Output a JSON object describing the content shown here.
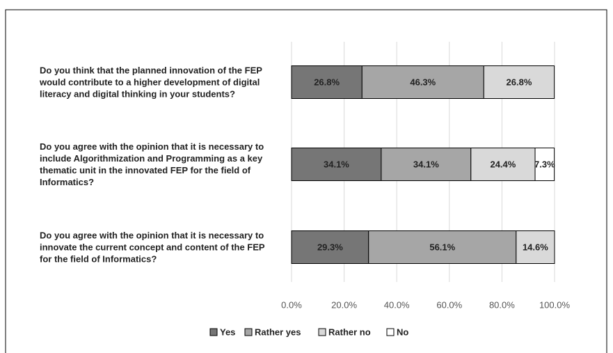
{
  "chart_data": {
    "type": "stacked_barh",
    "categories": [
      "Do you think that the planned innovation of the FEP would  contribute to a higher development of digital literacy and digital thinking in your students?",
      "Do you agree with the opinion that it is necessary to include Algorithmization and Programming as a key thematic unit in the innovated FEP for the field of Informatics?",
      "Do you agree with the opinion that it is necessary to innovate the current concept and content of the FEP for the field of Informatics?"
    ],
    "series": [
      {
        "name": "Yes",
        "color": "#767676",
        "values": [
          26.8,
          34.1,
          29.3
        ],
        "value_labels": [
          "26.8%",
          "34.1%",
          "29.3%"
        ]
      },
      {
        "name": "Rather yes",
        "color": "#a6a6a6",
        "values": [
          46.3,
          34.1,
          56.1
        ],
        "value_labels": [
          "46.3%",
          "34.1%",
          "56.1%"
        ]
      },
      {
        "name": "Rather no",
        "color": "#d9d9d9",
        "values": [
          26.8,
          24.4,
          14.6
        ],
        "value_labels": [
          "26.8%",
          "24.4%",
          "14.6%"
        ]
      },
      {
        "name": "No",
        "color": "#ffffff",
        "values": [
          null,
          7.3,
          null
        ],
        "value_labels": [
          null,
          "7.3%",
          null
        ]
      }
    ],
    "xlim": [
      0,
      100
    ],
    "xticks": [
      {
        "value": 0,
        "label": "0.0%"
      },
      {
        "value": 20,
        "label": "20.0%"
      },
      {
        "value": 40,
        "label": "40.0%"
      },
      {
        "value": 60,
        "label": "60.0%"
      },
      {
        "value": 80,
        "label": "80.0%"
      },
      {
        "value": 100,
        "label": "100.0%"
      }
    ],
    "grid": true,
    "legend": "bottom"
  }
}
